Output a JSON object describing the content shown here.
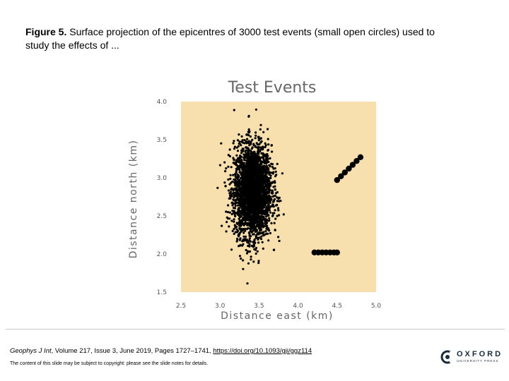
{
  "caption": {
    "label": "Figure 5.",
    "text": " Surface projection of the epicentres of 3000 test events (small open circles) used to study the effects of ..."
  },
  "chart_data": {
    "type": "scatter",
    "title": "Test Events",
    "xlabel": "Distance east (km)",
    "ylabel": "Distance north (km)",
    "xlim": [
      2.5,
      5.0
    ],
    "ylim": [
      1.5,
      4.0
    ],
    "xticks": [
      "2.5",
      "3.0",
      "3.5",
      "4.0",
      "4.5",
      "5.0"
    ],
    "yticks": [
      "1.5",
      "2.0",
      "2.5",
      "3.0",
      "3.5",
      "4.0"
    ],
    "background": "#f7dfae",
    "point_color": "#000000",
    "cluster": {
      "count": 3000,
      "center": [
        3.42,
        2.82
      ],
      "spread": [
        0.12,
        0.3
      ]
    },
    "series": [
      {
        "marker": "large-dot",
        "x": [
          4.21,
          4.26,
          4.31,
          4.36,
          4.41,
          4.46,
          4.5
        ],
        "y": [
          2.02,
          2.02,
          2.02,
          2.02,
          2.02,
          2.02,
          2.02
        ]
      },
      {
        "marker": "large-dot",
        "x": [
          4.5,
          4.55,
          4.6,
          4.65,
          4.7,
          4.75,
          4.8
        ],
        "y": [
          2.97,
          3.02,
          3.07,
          3.12,
          3.17,
          3.22,
          3.27
        ]
      }
    ]
  },
  "citation": {
    "journal": "Geophys J Int",
    "details": ", Volume 217, Issue 3, June 2019, Pages 1727–1741, ",
    "doi": "https://doi.org/10.1093/gji/ggz114"
  },
  "copyright": "The content of this slide may be subject to copyright: please see the slide notes for details.",
  "logo": {
    "word": "OXFORD",
    "sub": "UNIVERSITY PRESS",
    "icon": "oxford-logo-icon"
  }
}
